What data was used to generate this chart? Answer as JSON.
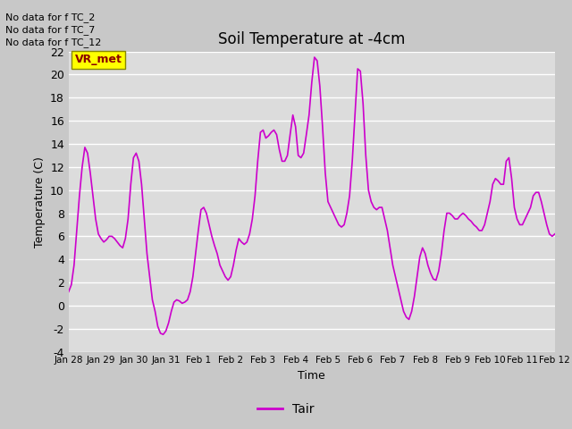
{
  "title": "Soil Temperature at -4cm",
  "xlabel": "Time",
  "ylabel": "Temperature (C)",
  "ylim": [
    -4,
    22
  ],
  "line_color": "#cc00cc",
  "line_width": 1.2,
  "bg_color": "#dcdcdc",
  "fig_bg_color": "#c8c8c8",
  "legend_label": "Tair",
  "no_data_texts": [
    "No data for f TC_2",
    "No data for f TC_7",
    "No data for f TC_12"
  ],
  "legend_box_label": "VR_met",
  "yticks": [
    -4,
    -2,
    0,
    2,
    4,
    6,
    8,
    10,
    12,
    14,
    16,
    18,
    20,
    22
  ],
  "xtick_labels": [
    "Jan 28",
    "Jan 29",
    "Jan 30",
    "Jan 31",
    "Feb 1",
    "Feb 2",
    "Feb 3",
    "Feb 4",
    "Feb 5",
    "Feb 6",
    "Feb 7",
    "Feb 8",
    "Feb 9",
    "Feb 10",
    "Feb 11",
    "Feb 12"
  ],
  "temp_x": [
    0,
    0.083,
    0.167,
    0.25,
    0.333,
    0.417,
    0.5,
    0.583,
    0.667,
    0.75,
    0.833,
    0.917,
    1.0,
    1.083,
    1.167,
    1.25,
    1.333,
    1.417,
    1.5,
    1.583,
    1.667,
    1.75,
    1.833,
    1.917,
    2.0,
    2.083,
    2.167,
    2.25,
    2.333,
    2.417,
    2.5,
    2.583,
    2.667,
    2.75,
    2.833,
    2.917,
    3.0,
    3.083,
    3.167,
    3.25,
    3.333,
    3.417,
    3.5,
    3.583,
    3.667,
    3.75,
    3.833,
    3.917,
    4.0,
    4.083,
    4.167,
    4.25,
    4.333,
    4.417,
    4.5,
    4.583,
    4.667,
    4.75,
    4.833,
    4.917,
    5.0,
    5.083,
    5.167,
    5.25,
    5.333,
    5.417,
    5.5,
    5.583,
    5.667,
    5.75,
    5.833,
    5.917,
    6.0,
    6.083,
    6.167,
    6.25,
    6.333,
    6.417,
    6.5,
    6.583,
    6.667,
    6.75,
    6.833,
    6.917,
    7.0,
    7.083,
    7.167,
    7.25,
    7.333,
    7.417,
    7.5,
    7.583,
    7.667,
    7.75,
    7.833,
    7.917,
    8.0,
    8.083,
    8.167,
    8.25,
    8.333,
    8.417,
    8.5,
    8.583,
    8.667,
    8.75,
    8.833,
    8.917,
    9.0,
    9.083,
    9.167,
    9.25,
    9.333,
    9.417,
    9.5,
    9.583,
    9.667,
    9.75,
    9.833,
    9.917,
    10.0,
    10.083,
    10.167,
    10.25,
    10.333,
    10.417,
    10.5,
    10.583,
    10.667,
    10.75,
    10.833,
    10.917,
    11.0,
    11.083,
    11.167,
    11.25,
    11.333,
    11.417,
    11.5,
    11.583,
    11.667,
    11.75,
    11.833,
    11.917,
    12.0,
    12.083,
    12.167,
    12.25,
    12.333,
    12.417,
    12.5,
    12.583,
    12.667,
    12.75,
    12.833,
    12.917,
    13.0,
    13.083,
    13.167,
    13.25,
    13.333,
    13.417,
    13.5,
    13.583,
    13.667,
    13.75,
    13.833,
    13.917,
    14.0,
    14.083,
    14.167,
    14.25,
    14.333,
    14.417,
    14.5,
    14.583,
    14.667,
    14.75,
    14.833,
    14.917,
    15.0
  ],
  "temp_y": [
    1.2,
    1.8,
    3.5,
    6.5,
    9.5,
    12.0,
    13.7,
    13.2,
    11.5,
    9.5,
    7.5,
    6.2,
    5.8,
    5.5,
    5.7,
    6.0,
    6.0,
    5.8,
    5.5,
    5.2,
    5.0,
    5.8,
    7.5,
    10.5,
    12.8,
    13.2,
    12.5,
    10.5,
    7.5,
    4.5,
    2.5,
    0.5,
    -0.5,
    -1.8,
    -2.4,
    -2.5,
    -2.2,
    -1.5,
    -0.5,
    0.3,
    0.5,
    0.4,
    0.2,
    0.3,
    0.5,
    1.2,
    2.5,
    4.5,
    6.5,
    8.3,
    8.5,
    8.0,
    7.0,
    6.0,
    5.2,
    4.5,
    3.5,
    3.0,
    2.5,
    2.2,
    2.5,
    3.5,
    4.8,
    5.8,
    5.5,
    5.3,
    5.5,
    6.2,
    7.5,
    9.5,
    12.5,
    15.0,
    15.2,
    14.5,
    14.7,
    15.0,
    15.2,
    14.8,
    13.5,
    12.5,
    12.5,
    13.0,
    14.8,
    16.5,
    15.5,
    13.0,
    12.8,
    13.2,
    14.8,
    16.5,
    19.3,
    21.5,
    21.2,
    19.0,
    15.5,
    11.5,
    9.0,
    8.5,
    8.0,
    7.5,
    7.0,
    6.8,
    7.0,
    8.0,
    9.5,
    12.5,
    16.5,
    20.5,
    20.3,
    17.5,
    13.0,
    10.0,
    9.0,
    8.5,
    8.3,
    8.5,
    8.5,
    7.5,
    6.5,
    5.0,
    3.5,
    2.5,
    1.5,
    0.5,
    -0.5,
    -1.0,
    -1.2,
    -0.5,
    0.8,
    2.5,
    4.2,
    5.0,
    4.5,
    3.5,
    2.8,
    2.3,
    2.2,
    3.0,
    4.5,
    6.5,
    8.0,
    8.0,
    7.8,
    7.5,
    7.5,
    7.8,
    8.0,
    7.8,
    7.5,
    7.3,
    7.0,
    6.8,
    6.5,
    6.5,
    7.0,
    8.0,
    9.0,
    10.5,
    11.0,
    10.8,
    10.5,
    10.5,
    12.5,
    12.8,
    11.0,
    8.5,
    7.5,
    7.0,
    7.0,
    7.5,
    8.0,
    8.5,
    9.5,
    9.8,
    9.8,
    9.0,
    8.0,
    7.0,
    6.2,
    6.0,
    6.2
  ]
}
